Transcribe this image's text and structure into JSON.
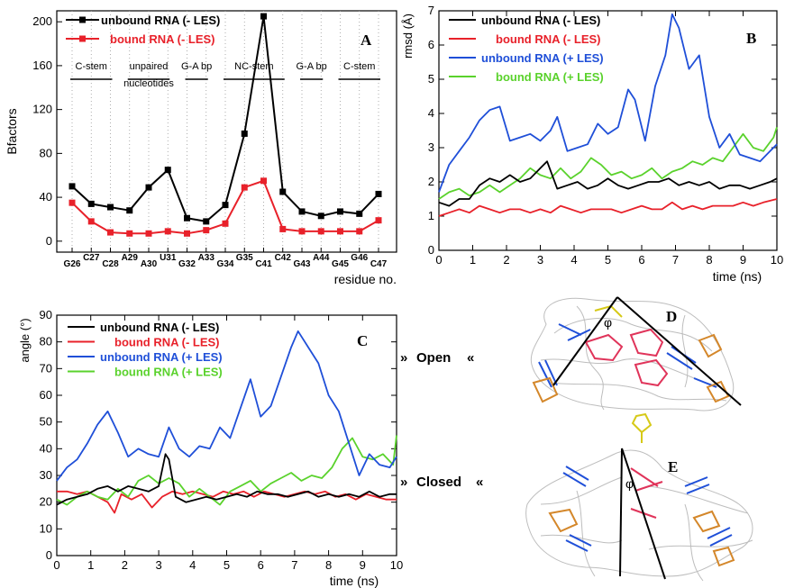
{
  "chart_data": [
    {
      "type": "line",
      "panel": "A",
      "xlabel": "residue no.",
      "ylabel": "Bfactors",
      "ylim": [
        -10,
        210
      ],
      "yticks": [
        0,
        40,
        80,
        120,
        160,
        200
      ],
      "grid": "vertical dotted",
      "legend_position": "top-left",
      "categories": [
        "G26",
        "C27",
        "C28",
        "A29",
        "A30",
        "U31",
        "G32",
        "A33",
        "G34",
        "G35",
        "C41",
        "C42",
        "G43",
        "A44",
        "G45",
        "G46",
        "C47"
      ],
      "series": [
        {
          "name": "unbound RNA (- LES)",
          "color": "#000000",
          "values": [
            50,
            34,
            31,
            28,
            49,
            65,
            21,
            18,
            33,
            98,
            205,
            45,
            27,
            23,
            27,
            25,
            43
          ]
        },
        {
          "name": "bound RNA (- LES)",
          "color": "#e8212a",
          "values": [
            35,
            18,
            8,
            7,
            7,
            9,
            7,
            10,
            16,
            49,
            55,
            11,
            9,
            9,
            9,
            9,
            19
          ]
        }
      ],
      "annotations": [
        {
          "text": "C-stem",
          "from": 0,
          "to": 2
        },
        {
          "text": "unpaired",
          "from": 3,
          "to": 5
        },
        {
          "text": "nucleotides",
          "from": 3,
          "to": 5
        },
        {
          "text": "G-A bp",
          "from": 6,
          "to": 7
        },
        {
          "text": "NC-stem",
          "from": 8,
          "to": 11
        },
        {
          "text": "G-A bp",
          "from": 12,
          "to": 13
        },
        {
          "text": "C-stem",
          "from": 14,
          "to": 16
        }
      ]
    },
    {
      "type": "line",
      "panel": "B",
      "xlabel": "time (ns)",
      "ylabel": "rmsd (Å)",
      "xlim": [
        0,
        10
      ],
      "ylim": [
        0,
        7
      ],
      "legend_position": "top-left",
      "series": [
        {
          "name": "unbound RNA (- LES)",
          "color": "#000000",
          "x": [
            0,
            0.3,
            0.6,
            0.9,
            1.2,
            1.5,
            1.8,
            2.1,
            2.4,
            2.7,
            3.0,
            3.2,
            3.5,
            3.8,
            4.1,
            4.4,
            4.7,
            5.0,
            5.3,
            5.6,
            5.9,
            6.2,
            6.5,
            6.8,
            7.1,
            7.4,
            7.7,
            8.0,
            8.3,
            8.6,
            8.9,
            9.2,
            9.5,
            9.8,
            10
          ],
          "y": [
            1.4,
            1.3,
            1.5,
            1.5,
            1.9,
            2.1,
            2.0,
            2.2,
            2.0,
            2.1,
            2.4,
            2.6,
            1.8,
            1.9,
            2.0,
            1.8,
            1.9,
            2.1,
            1.9,
            1.8,
            1.9,
            2.0,
            2.0,
            2.1,
            1.9,
            2.0,
            1.9,
            2.0,
            1.8,
            1.9,
            1.9,
            1.8,
            1.9,
            2.0,
            2.1
          ]
        },
        {
          "name": "bound RNA (- LES)",
          "color": "#e8212a",
          "x": [
            0,
            0.3,
            0.6,
            0.9,
            1.2,
            1.5,
            1.8,
            2.1,
            2.4,
            2.7,
            3.0,
            3.3,
            3.6,
            3.9,
            4.2,
            4.5,
            4.8,
            5.1,
            5.4,
            5.7,
            6.0,
            6.3,
            6.6,
            6.9,
            7.2,
            7.5,
            7.8,
            8.1,
            8.4,
            8.7,
            9.0,
            9.3,
            9.6,
            10
          ],
          "y": [
            1.0,
            1.1,
            1.2,
            1.1,
            1.3,
            1.2,
            1.1,
            1.2,
            1.2,
            1.1,
            1.2,
            1.1,
            1.3,
            1.2,
            1.1,
            1.2,
            1.2,
            1.2,
            1.1,
            1.2,
            1.3,
            1.2,
            1.2,
            1.4,
            1.2,
            1.3,
            1.2,
            1.3,
            1.3,
            1.3,
            1.4,
            1.3,
            1.4,
            1.5
          ]
        },
        {
          "name": "unbound RNA (+ LES)",
          "color": "#1f4fd8",
          "x": [
            0,
            0.3,
            0.6,
            0.9,
            1.2,
            1.5,
            1.8,
            2.1,
            2.4,
            2.7,
            3.0,
            3.3,
            3.5,
            3.8,
            4.1,
            4.4,
            4.7,
            5.0,
            5.3,
            5.6,
            5.8,
            6.1,
            6.4,
            6.7,
            6.9,
            7.1,
            7.4,
            7.7,
            8.0,
            8.3,
            8.6,
            8.9,
            9.2,
            9.5,
            9.8,
            10
          ],
          "y": [
            1.7,
            2.5,
            2.9,
            3.3,
            3.8,
            4.1,
            4.2,
            3.2,
            3.3,
            3.4,
            3.2,
            3.5,
            3.9,
            2.9,
            3.0,
            3.1,
            3.7,
            3.4,
            3.6,
            4.7,
            4.4,
            3.2,
            4.8,
            5.7,
            6.9,
            6.5,
            5.3,
            5.7,
            3.9,
            3.0,
            3.4,
            2.8,
            2.7,
            2.6,
            2.9,
            3.1
          ]
        },
        {
          "name": "bound RNA (+ LES)",
          "color": "#5ad22c",
          "x": [
            0,
            0.3,
            0.6,
            0.9,
            1.2,
            1.5,
            1.8,
            2.1,
            2.4,
            2.7,
            3.0,
            3.3,
            3.6,
            3.9,
            4.2,
            4.5,
            4.8,
            5.1,
            5.4,
            5.7,
            6.0,
            6.3,
            6.6,
            6.9,
            7.2,
            7.5,
            7.8,
            8.1,
            8.4,
            8.7,
            9.0,
            9.3,
            9.6,
            9.9,
            10
          ],
          "y": [
            1.5,
            1.7,
            1.8,
            1.6,
            1.7,
            1.9,
            1.7,
            1.9,
            2.1,
            2.4,
            2.2,
            2.1,
            2.4,
            2.1,
            2.3,
            2.7,
            2.5,
            2.2,
            2.3,
            2.1,
            2.2,
            2.4,
            2.1,
            2.3,
            2.4,
            2.6,
            2.5,
            2.7,
            2.6,
            3.0,
            3.4,
            3.0,
            2.9,
            3.3,
            3.6
          ]
        }
      ]
    },
    {
      "type": "line",
      "panel": "C",
      "xlabel": "time (ns)",
      "ylabel": "angle (°)",
      "xlim": [
        0,
        10
      ],
      "ylim": [
        0,
        90
      ],
      "legend_position": "top-left",
      "series": [
        {
          "name": "unbound RNA (- LES)",
          "color": "#000000",
          "x": [
            0,
            0.3,
            0.6,
            0.9,
            1.2,
            1.5,
            1.8,
            2.1,
            2.4,
            2.7,
            3.0,
            3.2,
            3.3,
            3.5,
            3.8,
            4.1,
            4.4,
            4.7,
            5.0,
            5.3,
            5.6,
            5.9,
            6.2,
            6.5,
            6.8,
            7.1,
            7.4,
            7.7,
            8.0,
            8.3,
            8.6,
            8.9,
            9.2,
            9.5,
            9.8,
            10
          ],
          "y": [
            19,
            21,
            22,
            23,
            25,
            26,
            24,
            26,
            25,
            24,
            26,
            38,
            36,
            22,
            20,
            21,
            22,
            21,
            22,
            23,
            22,
            24,
            23,
            23,
            22,
            23,
            24,
            22,
            23,
            22,
            23,
            22,
            24,
            22,
            23,
            23
          ]
        },
        {
          "name": "bound RNA (- LES)",
          "color": "#e8212a",
          "x": [
            0,
            0.3,
            0.6,
            0.9,
            1.2,
            1.5,
            1.7,
            1.9,
            2.2,
            2.5,
            2.8,
            3.1,
            3.4,
            3.7,
            4.0,
            4.3,
            4.6,
            4.9,
            5.2,
            5.5,
            5.8,
            6.1,
            6.4,
            6.7,
            7.0,
            7.3,
            7.6,
            7.9,
            8.2,
            8.5,
            8.8,
            9.1,
            9.4,
            9.7,
            10
          ],
          "y": [
            24,
            24,
            23,
            24,
            22,
            20,
            16,
            23,
            21,
            23,
            18,
            22,
            24,
            23,
            24,
            23,
            22,
            24,
            23,
            24,
            22,
            24,
            23,
            22,
            23,
            24,
            23,
            24,
            22,
            23,
            21,
            23,
            22,
            21,
            21
          ]
        },
        {
          "name": "unbound RNA (+ LES)",
          "color": "#1f4fd8",
          "x": [
            0,
            0.3,
            0.6,
            0.9,
            1.2,
            1.5,
            1.8,
            2.1,
            2.4,
            2.7,
            3.0,
            3.3,
            3.6,
            3.9,
            4.2,
            4.5,
            4.8,
            5.1,
            5.4,
            5.7,
            6.0,
            6.3,
            6.6,
            6.9,
            7.1,
            7.4,
            7.7,
            8.0,
            8.3,
            8.6,
            8.9,
            9.2,
            9.5,
            9.8,
            10
          ],
          "y": [
            28,
            33,
            36,
            42,
            49,
            54,
            46,
            37,
            40,
            38,
            37,
            48,
            40,
            37,
            41,
            40,
            48,
            44,
            55,
            66,
            52,
            56,
            67,
            78,
            84,
            78,
            72,
            60,
            54,
            42,
            30,
            38,
            34,
            33,
            37
          ]
        },
        {
          "name": "bound RNA (+ LES)",
          "color": "#5ad22c",
          "x": [
            0,
            0.3,
            0.6,
            0.9,
            1.2,
            1.5,
            1.8,
            2.1,
            2.4,
            2.7,
            3.0,
            3.3,
            3.6,
            3.9,
            4.2,
            4.5,
            4.8,
            5.1,
            5.4,
            5.7,
            6.0,
            6.3,
            6.6,
            6.9,
            7.2,
            7.5,
            7.8,
            8.1,
            8.4,
            8.7,
            9.0,
            9.3,
            9.6,
            9.9,
            10
          ],
          "y": [
            21,
            19,
            22,
            24,
            22,
            21,
            25,
            22,
            28,
            30,
            27,
            29,
            27,
            22,
            25,
            22,
            19,
            24,
            26,
            28,
            24,
            27,
            29,
            31,
            28,
            30,
            29,
            33,
            40,
            44,
            37,
            36,
            38,
            34,
            45
          ]
        }
      ]
    }
  ],
  "structures": {
    "panel_d": "D",
    "panel_e": "E",
    "angle_symbol_d": "φ",
    "angle_symbol_e": "φ",
    "open_label": "Open",
    "closed_label": "Closed",
    "arrow_in": "»",
    "arrow_out": "«"
  }
}
